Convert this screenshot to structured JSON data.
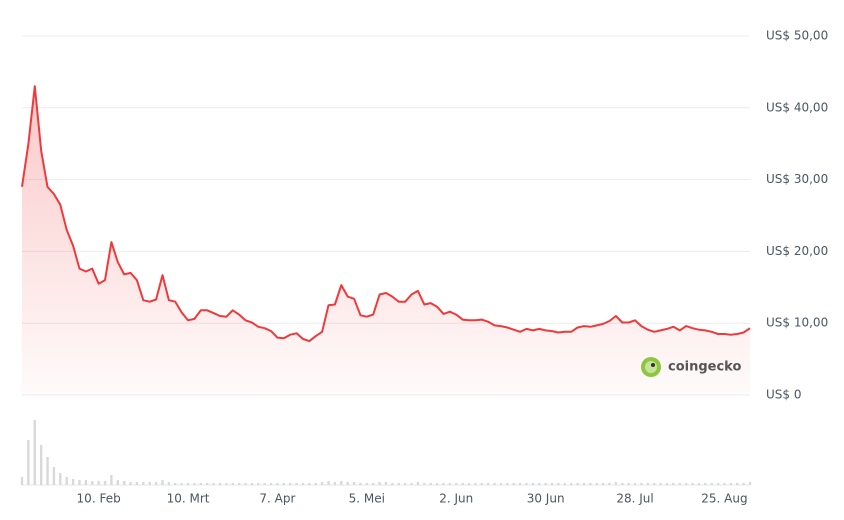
{
  "chart_data": {
    "type": "line",
    "categories": [
      null,
      null,
      null,
      null,
      null,
      null,
      null,
      null,
      null,
      null,
      null,
      null,
      "10. Feb",
      null,
      null,
      null,
      null,
      null,
      null,
      null,
      null,
      null,
      null,
      null,
      null,
      null,
      "10. Mrt",
      null,
      null,
      null,
      null,
      null,
      null,
      null,
      null,
      null,
      null,
      null,
      null,
      null,
      "7. Apr",
      null,
      null,
      null,
      null,
      null,
      null,
      null,
      null,
      null,
      null,
      null,
      null,
      null,
      "5. Mei",
      null,
      null,
      null,
      null,
      null,
      null,
      null,
      null,
      null,
      null,
      null,
      null,
      null,
      "2. Jun",
      null,
      null,
      null,
      null,
      null,
      null,
      null,
      null,
      null,
      null,
      null,
      null,
      null,
      "30 Jun",
      null,
      null,
      null,
      null,
      null,
      null,
      null,
      null,
      null,
      null,
      null,
      null,
      null,
      "28. Jul",
      null,
      null,
      null,
      null,
      null,
      null,
      null,
      null,
      null,
      null,
      null,
      null,
      null,
      "25. Aug",
      null,
      null,
      null,
      null
    ],
    "series": [
      {
        "color": "#f0393b",
        "values": [
          29,
          35,
          43,
          34,
          29,
          28,
          26.5,
          23,
          20.8,
          17.6,
          17.2,
          17.6,
          15.5,
          16,
          21.3,
          18.5,
          16.8,
          17,
          16,
          13.2,
          13,
          13.3,
          16.7,
          13.2,
          13,
          11.5,
          10.4,
          10.6,
          11.8,
          11.8,
          11.4,
          11,
          10.9,
          11.8,
          11.2,
          10.4,
          10.1,
          9.5,
          9.3,
          8.9,
          8,
          7.9,
          8.4,
          8.6,
          7.8,
          7.5,
          8.2,
          8.8,
          12.5,
          12.6,
          15.3,
          13.7,
          13.4,
          11.1,
          10.9,
          11.2,
          14,
          14.2,
          13.7,
          13,
          13,
          14,
          14.5,
          12.6,
          12.8,
          12.3,
          11.3,
          11.6,
          11.2,
          10.5,
          10.4,
          10.4,
          10.5,
          10.2,
          9.7,
          9.6,
          9.4,
          9.1,
          8.8,
          9.2,
          9,
          9.2,
          9,
          8.9,
          8.7,
          8.8,
          8.8,
          9.4,
          9.6,
          9.5,
          9.7,
          9.9,
          10.3,
          11,
          10.1,
          10.1,
          10.4,
          9.6,
          9.1,
          8.8,
          9,
          9.2,
          9.5,
          9,
          9.6,
          9.3,
          9.1,
          9,
          8.8,
          8.5,
          8.5,
          8.4,
          8.5,
          8.7,
          9.3
        ]
      }
    ],
    "volume": {
      "color": "#d9d9d9",
      "values": [
        8,
        45,
        65,
        40,
        28,
        18,
        12,
        8,
        6,
        5,
        5,
        4,
        4,
        4,
        10,
        5,
        4,
        3,
        3,
        3,
        3,
        3,
        5,
        3,
        2,
        2,
        2,
        2,
        2,
        2,
        2,
        2,
        2,
        2,
        2,
        2,
        2,
        2,
        2,
        2,
        2,
        2,
        2,
        2,
        2,
        2,
        2,
        3,
        4,
        3,
        4,
        3,
        3,
        2,
        2,
        2,
        3,
        3,
        2,
        2,
        2,
        2,
        3,
        2,
        2,
        2,
        2,
        2,
        2,
        2,
        2,
        2,
        2,
        2,
        2,
        2,
        2,
        2,
        2,
        2,
        2,
        2,
        2,
        2,
        2,
        2,
        2,
        2,
        2,
        2,
        2,
        2,
        2,
        3,
        2,
        2,
        2,
        2,
        2,
        2,
        2,
        2,
        2,
        2,
        2,
        2,
        2,
        2,
        2,
        2,
        2,
        2,
        2,
        2,
        3
      ]
    },
    "ylim": [
      0,
      50
    ],
    "yticks": [
      {
        "value": 0,
        "label": "US$ 0"
      },
      {
        "value": 10,
        "label": "US$ 10,00"
      },
      {
        "value": 20,
        "label": "US$ 20,00"
      },
      {
        "value": 30,
        "label": "US$ 30,00"
      },
      {
        "value": 40,
        "label": "US$ 40,00"
      },
      {
        "value": 50,
        "label": "US$ 50,00"
      }
    ],
    "grid": true,
    "watermark": "coingecko"
  }
}
